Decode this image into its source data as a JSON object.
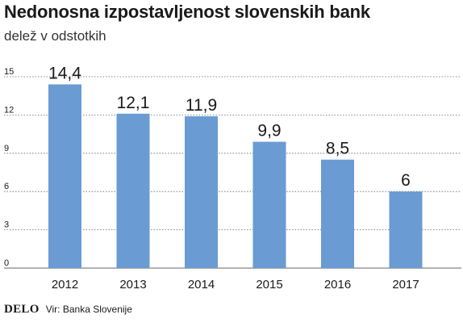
{
  "title": "Nedonosna izpostavljenost slovenskih bank",
  "subtitle": "delež v odstotkih",
  "logo": "DELO",
  "source": "Vir: Banka Slovenije",
  "colors": {
    "bar": "#6a9bd3",
    "grid": "#666666",
    "text": "#1a1a1a"
  },
  "chart_data": {
    "type": "bar",
    "categories": [
      "2012",
      "2013",
      "2014",
      "2015",
      "2016",
      "2017"
    ],
    "values": [
      14.4,
      12.1,
      11.9,
      9.9,
      8.5,
      6
    ],
    "value_labels": [
      "14,4",
      "12,1",
      "11,9",
      "9,9",
      "8,5",
      "6"
    ],
    "yticks": [
      0,
      3,
      6,
      9,
      12,
      15
    ],
    "ylim": [
      0,
      15
    ],
    "grid": true,
    "title": "Nedonosna izpostavljenost slovenskih bank",
    "subtitle": "delež v odstotkih",
    "xlabel": "",
    "ylabel": ""
  }
}
